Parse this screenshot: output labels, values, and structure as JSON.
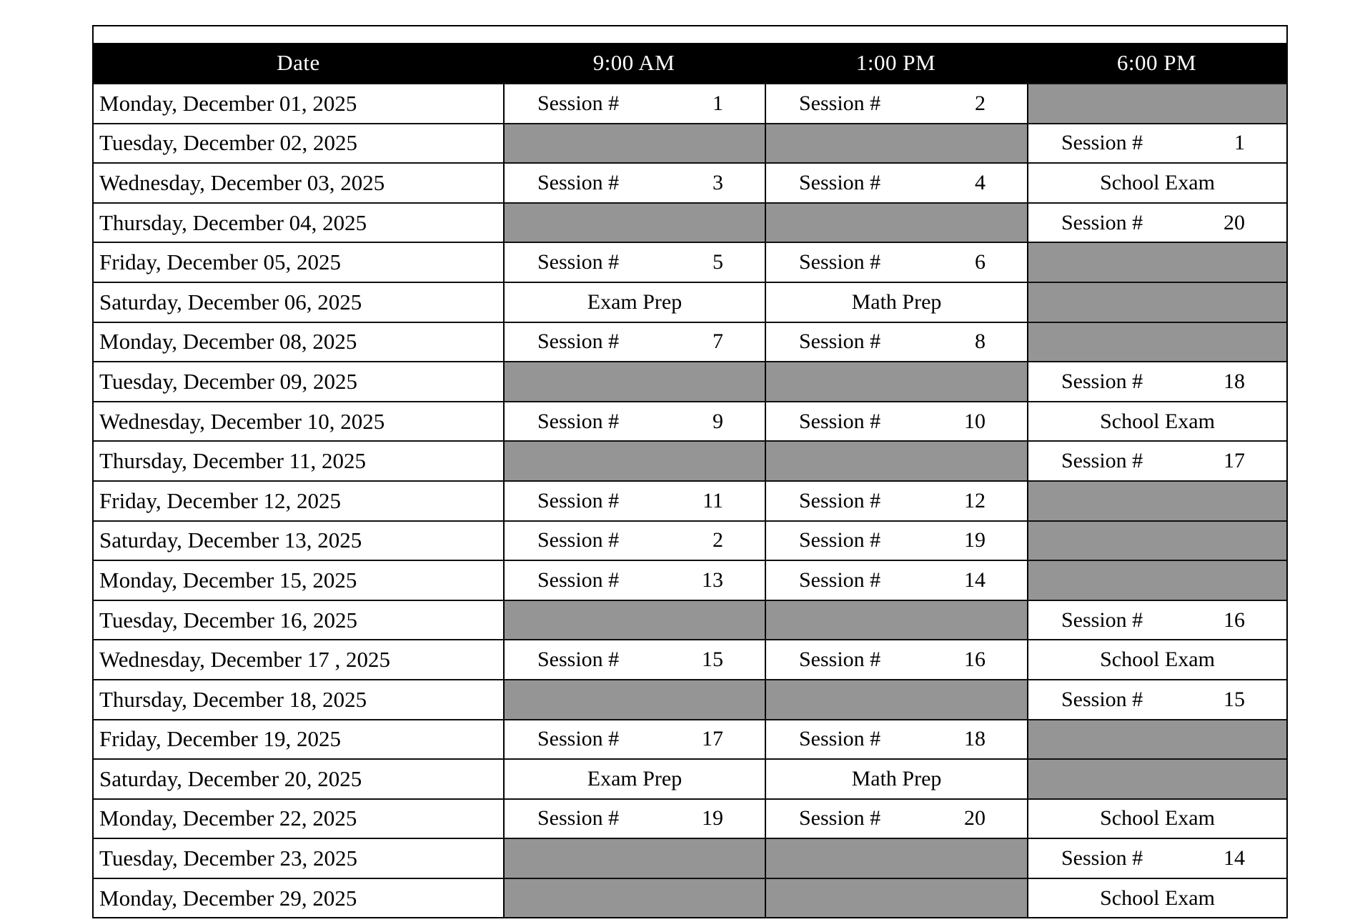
{
  "table": {
    "columns": [
      "Date",
      "9:00 AM",
      "1:00 PM",
      "6:00 PM"
    ]
  },
  "colors": {
    "header_bg": "#000000",
    "header_text": "#ffffff",
    "empty_cell_fill": "#959595",
    "border": "#000000"
  },
  "rows": [
    {
      "date": "Monday, December 01, 2025",
      "am9": {
        "label": "Session #",
        "num": "1"
      },
      "pm1": {
        "label": "Session #",
        "num": "2"
      },
      "pm6": null
    },
    {
      "date": "Tuesday, December 02, 2025",
      "am9": null,
      "pm1": null,
      "pm6": {
        "label": "Session #",
        "num": "1"
      }
    },
    {
      "date": "Wednesday, December 03, 2025",
      "am9": {
        "label": "Session #",
        "num": "3"
      },
      "pm1": {
        "label": "Session #",
        "num": "4"
      },
      "pm6": {
        "text": "School Exam"
      }
    },
    {
      "date": "Thursday, December 04, 2025",
      "am9": null,
      "pm1": null,
      "pm6": {
        "label": "Session #",
        "num": "20"
      }
    },
    {
      "date": "Friday, December 05, 2025",
      "am9": {
        "label": "Session #",
        "num": "5"
      },
      "pm1": {
        "label": "Session #",
        "num": "6"
      },
      "pm6": null
    },
    {
      "date": "Saturday, December 06, 2025",
      "am9": {
        "text": "Exam Prep"
      },
      "pm1": {
        "text": "Math Prep"
      },
      "pm6": null
    },
    {
      "date": "Monday, December 08, 2025",
      "am9": {
        "label": "Session #",
        "num": "7"
      },
      "pm1": {
        "label": "Session #",
        "num": "8"
      },
      "pm6": null
    },
    {
      "date": "Tuesday, December 09, 2025",
      "am9": null,
      "pm1": null,
      "pm6": {
        "label": "Session #",
        "num": "18"
      }
    },
    {
      "date": "Wednesday, December 10, 2025",
      "am9": {
        "label": "Session #",
        "num": "9"
      },
      "pm1": {
        "label": "Session #",
        "num": "10"
      },
      "pm6": {
        "text": "School Exam"
      }
    },
    {
      "date": "Thursday, December 11, 2025",
      "am9": null,
      "pm1": null,
      "pm6": {
        "label": "Session #",
        "num": "17"
      }
    },
    {
      "date": "Friday, December 12, 2025",
      "am9": {
        "label": "Session #",
        "num": "11"
      },
      "pm1": {
        "label": "Session #",
        "num": "12"
      },
      "pm6": null
    },
    {
      "date": "Saturday, December 13, 2025",
      "am9": {
        "label": "Session #",
        "num": "2"
      },
      "pm1": {
        "label": "Session #",
        "num": "19"
      },
      "pm6": null
    },
    {
      "date": "Monday, December 15, 2025",
      "am9": {
        "label": "Session #",
        "num": "13"
      },
      "pm1": {
        "label": "Session #",
        "num": "14"
      },
      "pm6": null
    },
    {
      "date": "Tuesday, December 16, 2025",
      "am9": null,
      "pm1": null,
      "pm6": {
        "label": "Session #",
        "num": "16"
      }
    },
    {
      "date": "Wednesday, December 17 , 2025",
      "am9": {
        "label": "Session #",
        "num": "15"
      },
      "pm1": {
        "label": "Session #",
        "num": "16"
      },
      "pm6": {
        "text": "School Exam"
      }
    },
    {
      "date": "Thursday, December 18, 2025",
      "am9": null,
      "pm1": null,
      "pm6": {
        "label": "Session #",
        "num": "15"
      }
    },
    {
      "date": "Friday, December 19, 2025",
      "am9": {
        "label": "Session #",
        "num": "17"
      },
      "pm1": {
        "label": "Session #",
        "num": "18"
      },
      "pm6": null
    },
    {
      "date": "Saturday, December 20, 2025",
      "am9": {
        "text": "Exam Prep"
      },
      "pm1": {
        "text": "Math Prep"
      },
      "pm6": null
    },
    {
      "date": "Monday, December 22, 2025",
      "am9": {
        "label": "Session #",
        "num": "19"
      },
      "pm1": {
        "label": "Session #",
        "num": "20"
      },
      "pm6": {
        "text": "School Exam"
      }
    },
    {
      "date": "Tuesday, December 23, 2025",
      "am9": null,
      "pm1": null,
      "pm6": {
        "label": "Session #",
        "num": "14"
      }
    },
    {
      "date": "Monday, December 29, 2025",
      "am9": null,
      "pm1": null,
      "pm6": {
        "text": "School Exam"
      }
    }
  ]
}
